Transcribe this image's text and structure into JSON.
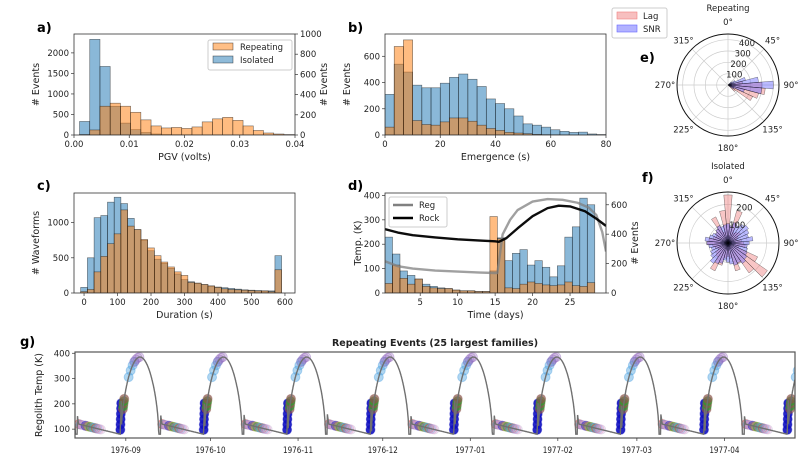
{
  "colors": {
    "isolated": "#1f77b4",
    "repeating": "#ff7f0e",
    "lag": "#f08080",
    "snr": "#6666ff",
    "reg": "#808080",
    "rock": "#000000"
  },
  "chart_data": [
    {
      "id": "a",
      "type": "bar",
      "panel_label": "a)",
      "xlabel": "PGV (volts)",
      "ylabel": "# Events",
      "ylabel_right": "# Events",
      "xlim": [
        0,
        0.04
      ],
      "ylim": [
        0,
        2460
      ],
      "ylim_right": [
        0,
        1000
      ],
      "xticks": [
        0,
        0.01,
        0.02,
        0.03,
        0.04
      ],
      "xtick_labels": [
        "0.00",
        "0.01",
        "0.02",
        "0.03",
        "0.04"
      ],
      "yticks": [
        0,
        500,
        1000,
        1500,
        2000
      ],
      "ytick_labels": [
        "0",
        "500",
        "1000",
        "1500",
        "2000"
      ],
      "yticks_right": [
        0,
        200,
        400,
        600,
        800,
        1000
      ],
      "ytick_labels_right": [
        "0",
        "200",
        "400",
        "600",
        "800",
        "1000"
      ],
      "grid": false,
      "legend_placement": "top-right",
      "series": [
        {
          "name": "Isolated",
          "axis": "left",
          "color": "#1f77b4",
          "start": 0.001,
          "bin_width": 0.00185,
          "values": [
            330,
            2330,
            1670,
            700,
            290,
            130,
            60,
            25,
            12,
            8,
            6,
            5,
            4,
            3,
            2,
            2,
            1,
            1,
            0,
            0,
            0
          ]
        },
        {
          "name": "Repeating",
          "axis": "right",
          "color": "#ff7f0e",
          "start": 0.001,
          "bin_width": 0.00185,
          "values": [
            5,
            50,
            285,
            315,
            285,
            225,
            150,
            90,
            70,
            75,
            65,
            80,
            130,
            160,
            175,
            145,
            90,
            45,
            20,
            10,
            5
          ]
        }
      ]
    },
    {
      "id": "b",
      "type": "bar",
      "panel_label": "b)",
      "xlabel": "Emergence (s)",
      "ylabel": "# Events",
      "xlim": [
        0,
        80
      ],
      "ylim": [
        0,
        770
      ],
      "xticks": [
        0,
        20,
        40,
        60,
        80
      ],
      "xtick_labels": [
        "0",
        "20",
        "40",
        "60",
        "80"
      ],
      "yticks": [
        0,
        200,
        400,
        600
      ],
      "ytick_labels": [
        "0",
        "200",
        "400",
        "600"
      ],
      "grid": false,
      "series": [
        {
          "name": "Isolated",
          "axis": "left",
          "color": "#1f77b4",
          "start": 0,
          "bin_width": 3.333,
          "values": [
            310,
            540,
            480,
            380,
            360,
            360,
            395,
            440,
            465,
            425,
            370,
            275,
            240,
            200,
            145,
            85,
            75,
            60,
            40,
            28,
            20,
            22,
            8,
            4
          ]
        },
        {
          "name": "Repeating",
          "axis": "left",
          "color": "#ff7f0e",
          "start": 0,
          "bin_width": 3.333,
          "values": [
            60,
            675,
            725,
            110,
            80,
            75,
            100,
            130,
            130,
            105,
            75,
            50,
            35,
            20,
            15,
            10,
            5,
            3,
            2,
            1,
            0,
            0,
            0,
            0
          ]
        }
      ]
    },
    {
      "id": "c",
      "type": "bar",
      "panel_label": "c)",
      "xlabel": "Duration (s)",
      "ylabel": "# Waveforms",
      "xlim": [
        -30,
        630
      ],
      "ylim": [
        0,
        1420
      ],
      "xticks": [
        0,
        100,
        200,
        300,
        400,
        500,
        600
      ],
      "xtick_labels": [
        "0",
        "100",
        "200",
        "300",
        "400",
        "500",
        "600"
      ],
      "yticks": [
        0,
        500,
        1000
      ],
      "ytick_labels": [
        "0",
        "500",
        "1000"
      ],
      "grid": false,
      "series": [
        {
          "name": "Isolated",
          "axis": "left",
          "color": "#1f77b4",
          "start": -10,
          "bin_width": 20,
          "values": [
            80,
            500,
            1070,
            1100,
            1290,
            1360,
            1270,
            1060,
            900,
            750,
            600,
            480,
            420,
            350,
            270,
            190,
            160,
            140,
            120,
            100,
            85,
            75,
            65,
            55,
            45,
            40,
            35,
            30,
            30,
            530
          ]
        },
        {
          "name": "Repeating",
          "axis": "left",
          "color": "#ff7f0e",
          "start": -10,
          "bin_width": 20,
          "values": [
            20,
            50,
            300,
            520,
            700,
            840,
            1180,
            950,
            900,
            760,
            640,
            530,
            440,
            370,
            300,
            250,
            150,
            140,
            120,
            100,
            80,
            60,
            50,
            45,
            40,
            35,
            30,
            30,
            20,
            330
          ]
        }
      ]
    },
    {
      "id": "d",
      "type": "bar",
      "panel_label": "d)",
      "xlabel": "Time (days)",
      "ylabel": "Temp. (K)",
      "ylabel_right": "# Events",
      "xlim": [
        0.3,
        29.8
      ],
      "ylim": [
        0,
        410
      ],
      "ylim_right": [
        0,
        680
      ],
      "xticks": [
        5,
        10,
        15,
        20,
        25
      ],
      "xtick_labels": [
        "5",
        "10",
        "15",
        "20",
        "25"
      ],
      "yticks": [
        0,
        100,
        200,
        300,
        400
      ],
      "ytick_labels": [
        "0",
        "100",
        "200",
        "300",
        "400"
      ],
      "yticks_right": [
        0,
        200,
        400,
        600
      ],
      "ytick_labels_right": [
        "0",
        "200",
        "400",
        "600"
      ],
      "grid": false,
      "legend_placement": "top-left",
      "series": [
        {
          "name": "Isolated",
          "axis": "right",
          "color": "#1f77b4",
          "start": 0.3,
          "bin_width": 1.0,
          "values": [
            380,
            265,
            150,
            120,
            95,
            60,
            45,
            35,
            30,
            20,
            15,
            15,
            10,
            10,
            150,
            375,
            220,
            270,
            295,
            190,
            220,
            175,
            110,
            185,
            380,
            450,
            645,
            600,
            0
          ]
        },
        {
          "name": "Repeating",
          "axis": "right",
          "color": "#ff7f0e",
          "start": 0.3,
          "bin_width": 1.0,
          "values": [
            65,
            190,
            100,
            60,
            95,
            45,
            35,
            30,
            30,
            20,
            15,
            15,
            10,
            10,
            520,
            370,
            35,
            30,
            60,
            75,
            65,
            55,
            50,
            55,
            75,
            50,
            45,
            70,
            0
          ]
        }
      ],
      "lines": [
        {
          "name": "Reg",
          "color": "#808080",
          "x": [
            0.3,
            2,
            4,
            7,
            10,
            13,
            15,
            15.3,
            16,
            17,
            18,
            20,
            22,
            24,
            26,
            27.5,
            28.5,
            29.3,
            29.8
          ],
          "y": [
            130,
            110,
            100,
            92,
            88,
            84,
            82,
            82,
            240,
            300,
            340,
            375,
            385,
            382,
            370,
            350,
            320,
            250,
            170
          ]
        },
        {
          "name": "Rock",
          "color": "#000000",
          "x": [
            0.3,
            2,
            4,
            7,
            10,
            13,
            15,
            15.5,
            16.5,
            18,
            20,
            22,
            23.5,
            25,
            27,
            28.5,
            29.8
          ],
          "y": [
            262,
            248,
            237,
            228,
            220,
            215,
            212,
            210,
            225,
            265,
            315,
            348,
            358,
            355,
            335,
            305,
            275
          ]
        }
      ]
    },
    {
      "id": "e",
      "type": "polar-bar",
      "panel_label": "e)",
      "title": "Repeating",
      "rlim": [
        0,
        450
      ],
      "rticks": [
        100,
        200,
        300,
        400
      ],
      "rtick_labels": [
        "100",
        "200",
        "300",
        "400"
      ],
      "angle_labels": [
        "0°",
        "45°",
        "90°",
        "135°",
        "180°",
        "225°",
        "270°",
        "315°"
      ],
      "bin_width_deg": 10,
      "series": [
        {
          "name": "Lag",
          "color": "#f08080",
          "angles": [
            70,
            80,
            90,
            100,
            110,
            120,
            130
          ],
          "values": [
            40,
            130,
            300,
            330,
            280,
            240,
            80
          ]
        },
        {
          "name": "SNR",
          "color": "#6666ff",
          "angles": [
            50,
            60,
            70,
            80,
            90,
            100,
            110,
            120
          ],
          "values": [
            40,
            70,
            160,
            270,
            400,
            300,
            150,
            60
          ]
        }
      ]
    },
    {
      "id": "f",
      "type": "polar-bar",
      "panel_label": "f)",
      "title": "Isolated",
      "rlim": [
        0,
        265
      ],
      "rticks": [
        100,
        200
      ],
      "rtick_labels": [
        "100",
        "200"
      ],
      "angle_labels": [
        "0°",
        "45°",
        "90°",
        "135°",
        "180°",
        "225°",
        "270°",
        "315°"
      ],
      "bin_width_deg": 10,
      "series": [
        {
          "name": "Lag",
          "color": "#f08080",
          "angles": [
            0,
            10,
            20,
            30,
            40,
            50,
            60,
            70,
            80,
            90,
            100,
            110,
            120,
            130,
            140,
            150,
            160,
            170,
            180,
            190,
            200,
            210,
            220,
            230,
            240,
            250,
            260,
            270,
            280,
            290,
            300,
            310,
            320,
            330,
            340,
            350
          ],
          "values": [
            250,
            90,
            175,
            60,
            70,
            80,
            60,
            50,
            70,
            80,
            90,
            60,
            170,
            250,
            190,
            120,
            150,
            80,
            70,
            80,
            120,
            160,
            90,
            80,
            60,
            70,
            80,
            110,
            100,
            80,
            70,
            80,
            90,
            150,
            60,
            170
          ]
        },
        {
          "name": "SNR",
          "color": "#6666ff",
          "angles": [
            0,
            10,
            20,
            30,
            40,
            50,
            60,
            70,
            80,
            90,
            100,
            110,
            120,
            130,
            140,
            150,
            160,
            170,
            180,
            190,
            200,
            210,
            220,
            230,
            240,
            250,
            260,
            270,
            280,
            290,
            300,
            310,
            320,
            330,
            340,
            350
          ],
          "values": [
            100,
            90,
            110,
            100,
            120,
            130,
            120,
            110,
            130,
            110,
            100,
            105,
            110,
            120,
            130,
            115,
            120,
            110,
            100,
            90,
            110,
            120,
            130,
            110,
            100,
            90,
            100,
            110,
            120,
            100,
            90,
            80,
            90,
            100,
            90,
            95
          ]
        }
      ]
    },
    {
      "id": "g",
      "type": "line",
      "panel_label": "g)",
      "title": "Repeating Events (25 largest families)",
      "ylabel": "Regolith Temp (K)",
      "ylim": [
        65,
        405
      ],
      "yticks": [
        100,
        200,
        300,
        400
      ],
      "ytick_labels": [
        "100",
        "200",
        "300",
        "400"
      ],
      "xlim": [
        "1976-08-14",
        "1977-04-26"
      ],
      "xticks": [
        "1976-09-01",
        "1976-10-01",
        "1976-11-01",
        "1976-12-01",
        "1977-01-01",
        "1977-02-01",
        "1977-03-01",
        "1977-04-01"
      ],
      "xtick_labels": [
        "1976-09",
        "1976-10",
        "1976-11",
        "1976-12",
        "1977-01",
        "1977-02",
        "1977-03",
        "1977-04"
      ],
      "line_color": "#707070",
      "marker_colors": [
        "#d62728",
        "#2ca02c",
        "#1010c0",
        "#4fa3e0",
        "#9467bd",
        "#8c564b",
        "#e377c2",
        "#17becf",
        "#bcbd22",
        "#c5b0d5"
      ]
    }
  ],
  "legend_e_f": [
    {
      "label": "Lag",
      "color": "#f08080"
    },
    {
      "label": "SNR",
      "color": "#6666ff"
    }
  ],
  "legend_a": [
    {
      "label": "Repeating",
      "color": "#ff7f0e"
    },
    {
      "label": "Isolated",
      "color": "#1f77b4"
    }
  ],
  "legend_d": [
    {
      "label": "Reg",
      "color": "#808080"
    },
    {
      "label": "Rock",
      "color": "#000000"
    }
  ]
}
